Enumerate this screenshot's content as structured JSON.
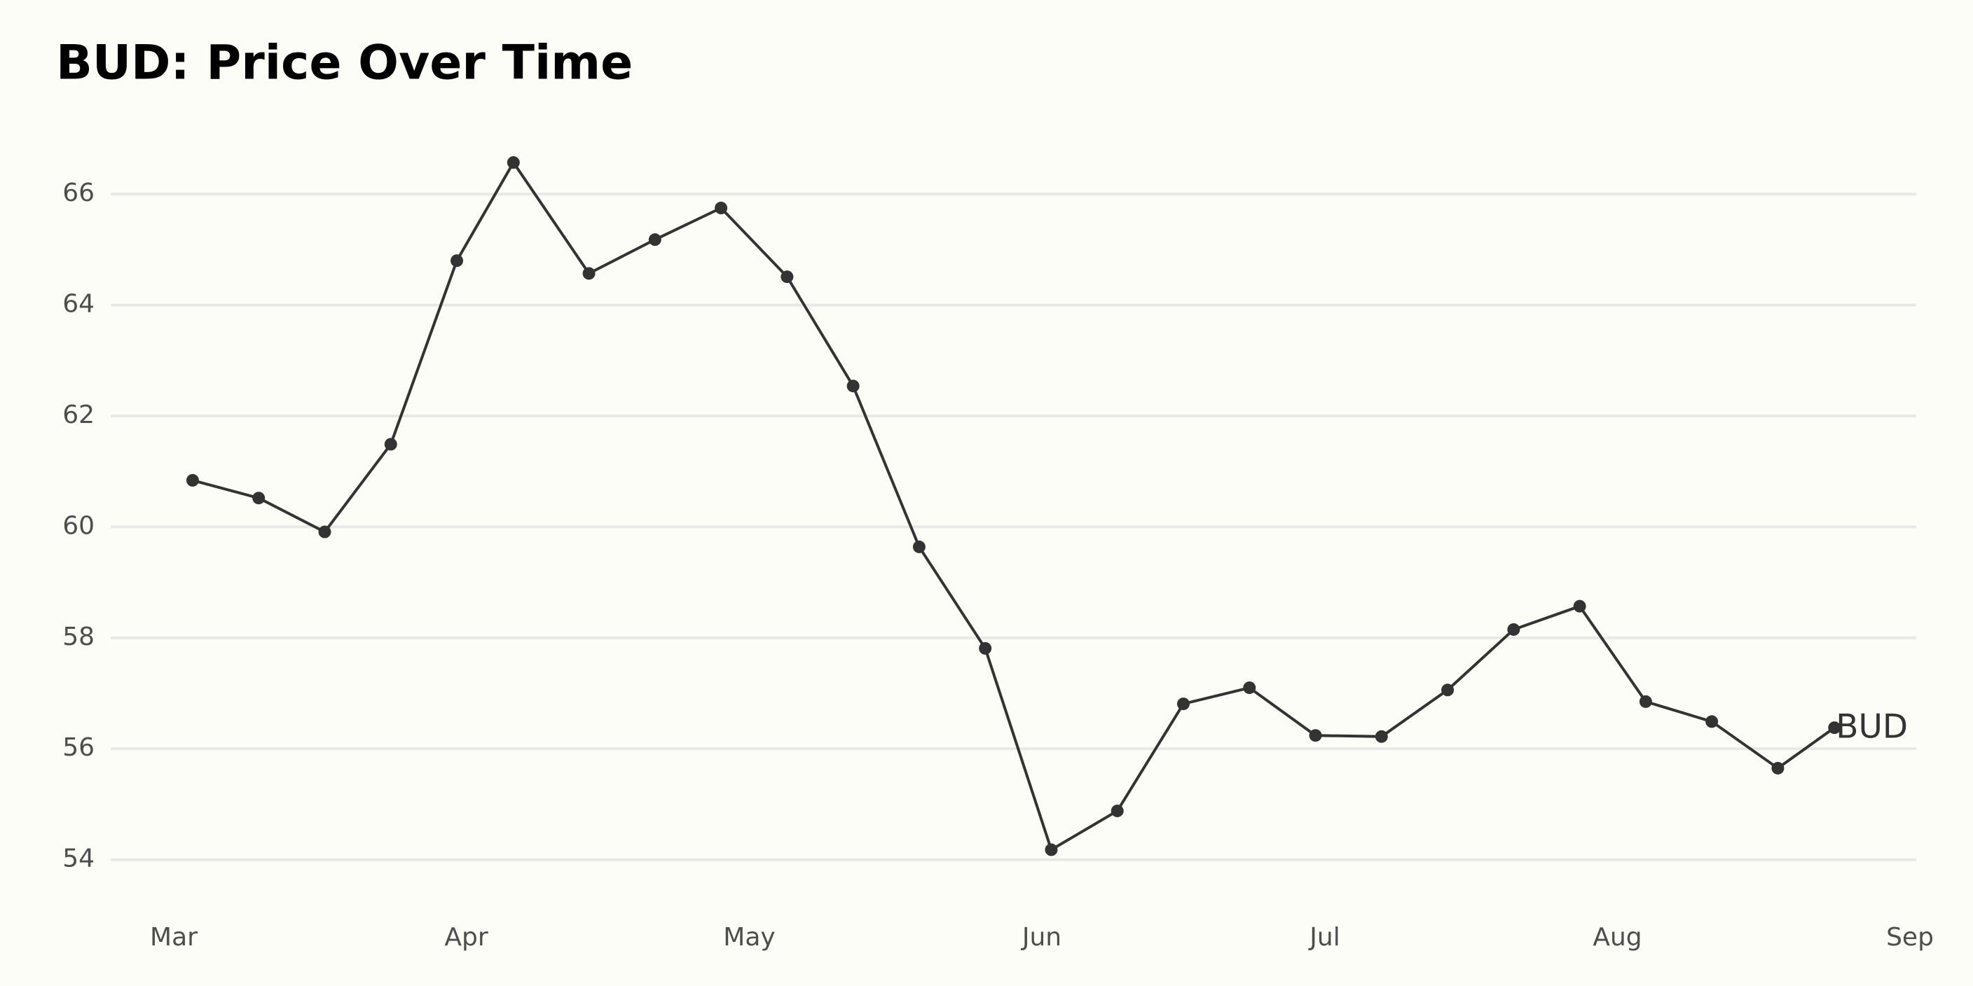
{
  "chart_data": {
    "type": "line",
    "title": "BUD: Price Over Time",
    "x": [
      2,
      9,
      16,
      23,
      30,
      36,
      44,
      51,
      58,
      65,
      72,
      79,
      86,
      93,
      100,
      107,
      114,
      121,
      128,
      135,
      142,
      149,
      156,
      163,
      170,
      176
    ],
    "series": [
      {
        "name": "BUD",
        "color": "#333333",
        "values": [
          60.84,
          60.52,
          59.91,
          61.49,
          64.8,
          66.57,
          64.57,
          65.18,
          65.75,
          64.51,
          62.54,
          59.64,
          57.81,
          54.18,
          54.88,
          56.81,
          57.1,
          56.24,
          56.22,
          57.06,
          58.15,
          58.57,
          56.85,
          56.49,
          55.65,
          56.38
        ]
      }
    ],
    "xlim": [
      0,
      184
    ],
    "xticks": [
      {
        "value": 0,
        "label": "Mar"
      },
      {
        "value": 31,
        "label": "Apr"
      },
      {
        "value": 61,
        "label": "May"
      },
      {
        "value": 92,
        "label": "Jun"
      },
      {
        "value": 122,
        "label": "Jul"
      },
      {
        "value": 153,
        "label": "Aug"
      },
      {
        "value": 184,
        "label": "Sep"
      }
    ],
    "ylim": [
      53.2,
      67
    ],
    "yticks": [
      54,
      56,
      58,
      60,
      62,
      64,
      66
    ],
    "grid": true
  }
}
